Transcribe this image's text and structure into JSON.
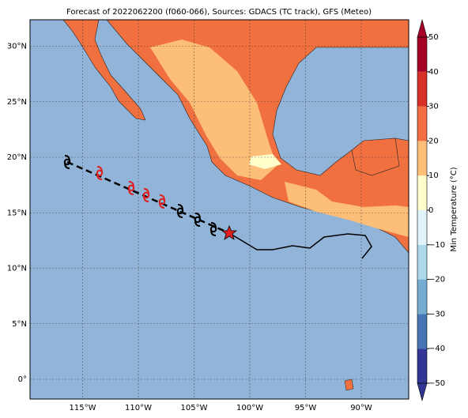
{
  "title": "Forecast of 2022062200 (f060-066), Sources: GDACS (TC track), GFS (Meteo)",
  "map": {
    "lon_ticks": [
      {
        "value": -115,
        "label": "115°W"
      },
      {
        "value": -110,
        "label": "110°W"
      },
      {
        "value": -105,
        "label": "105°W"
      },
      {
        "value": -100,
        "label": "100°W"
      },
      {
        "value": -95,
        "label": "95°W"
      },
      {
        "value": -90,
        "label": "90°W"
      }
    ],
    "lat_ticks": [
      {
        "value": 30,
        "label": "30°N"
      },
      {
        "value": 25,
        "label": "25°N"
      },
      {
        "value": 20,
        "label": "20°N"
      },
      {
        "value": 15,
        "label": "15°N"
      },
      {
        "value": 10,
        "label": "10°N"
      },
      {
        "value": 5,
        "label": "5°N"
      },
      {
        "value": 0,
        "label": "0°"
      }
    ]
  },
  "colorbar": {
    "label": "Min Temperature (°C)",
    "lim": [
      -50,
      50
    ],
    "ticks": [
      {
        "value": 50,
        "label": "50"
      },
      {
        "value": 40,
        "label": "40"
      },
      {
        "value": 30,
        "label": "30"
      },
      {
        "value": 20,
        "label": "20"
      },
      {
        "value": 10,
        "label": "10"
      },
      {
        "value": 0,
        "label": "0"
      },
      {
        "value": -10,
        "label": "−10"
      },
      {
        "value": -20,
        "label": "−20"
      },
      {
        "value": -30,
        "label": "−30"
      },
      {
        "value": -40,
        "label": "−40"
      },
      {
        "value": -50,
        "label": "−50"
      }
    ],
    "colors": [
      "#313695",
      "#4575b4",
      "#74add1",
      "#abd9e9",
      "#e0f3f8",
      "#ffffcc",
      "#fdbf78",
      "#f46d43",
      "#d73027",
      "#a50026"
    ]
  }
}
